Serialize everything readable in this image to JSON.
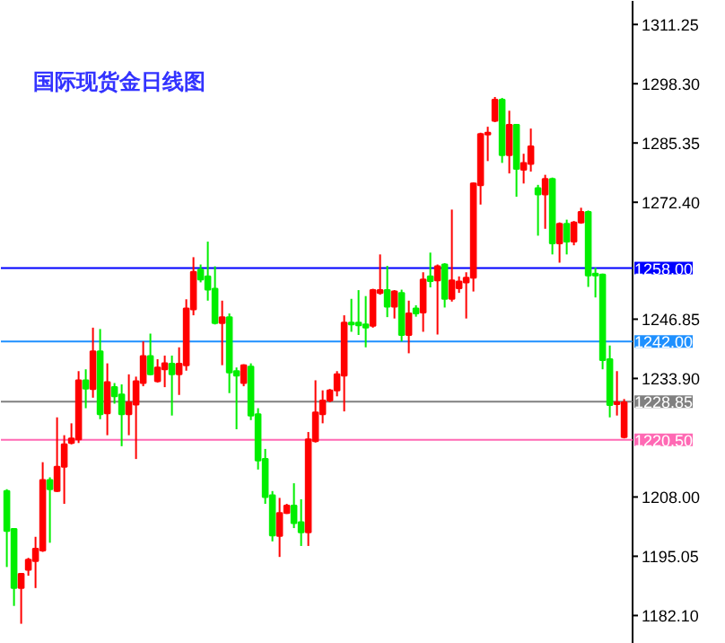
{
  "chart_data": {
    "type": "candlestick",
    "title": "国际现货金日线图",
    "categories": [
      null,
      null,
      null,
      null,
      null,
      null,
      null,
      null,
      null,
      null,
      null,
      null,
      null,
      null,
      null,
      null,
      null,
      null,
      null,
      null,
      null,
      null,
      null,
      null,
      null,
      null,
      null,
      null,
      null,
      null,
      null,
      null,
      null,
      null,
      null,
      null,
      null,
      null,
      null,
      null,
      null,
      null,
      null,
      null,
      null,
      null,
      null,
      null,
      null,
      null,
      null,
      null,
      null,
      null,
      null,
      null,
      null,
      null,
      null,
      null,
      null,
      null,
      null,
      null,
      null,
      null,
      null,
      null,
      null,
      null,
      null,
      null,
      null,
      null,
      null,
      null,
      null,
      null,
      null,
      null,
      null,
      null,
      null,
      null,
      null,
      null,
      null
    ],
    "ohlc": [
      [
        1209.3,
        1209.7,
        1192.7,
        1200.6
      ],
      [
        1201.0,
        1201.2,
        1184.2,
        1188.1
      ],
      [
        1188.1,
        1191.4,
        1180.3,
        1191.2
      ],
      [
        1192.1,
        1194.7,
        1190.8,
        1194.3
      ],
      [
        1194.0,
        1199.3,
        1188.1,
        1196.7
      ],
      [
        1196.3,
        1215.6,
        1196.0,
        1211.7
      ],
      [
        1211.7,
        1212.3,
        1198.0,
        1209.7
      ],
      [
        1209.3,
        1225.4,
        1209.1,
        1214.6
      ],
      [
        1214.6,
        1221.5,
        1206.5,
        1219.5
      ],
      [
        1219.8,
        1224.1,
        1219.5,
        1220.8
      ],
      [
        1220.6,
        1235.5,
        1219.8,
        1233.5
      ],
      [
        1233.5,
        1235.9,
        1227.4,
        1231.7
      ],
      [
        1231.6,
        1245.0,
        1229.7,
        1239.8
      ],
      [
        1239.8,
        1244.7,
        1225.0,
        1226.1
      ],
      [
        1226.3,
        1237.2,
        1221.5,
        1233.1
      ],
      [
        1232.0,
        1232.9,
        1228.4,
        1230.0
      ],
      [
        1230.4,
        1232.6,
        1219.1,
        1226.1
      ],
      [
        1226.1,
        1234.8,
        1221.5,
        1228.7
      ],
      [
        1228.2,
        1234.3,
        1216.3,
        1233.3
      ],
      [
        1232.9,
        1242.0,
        1232.2,
        1238.8
      ],
      [
        1238.8,
        1243.7,
        1234.6,
        1234.8
      ],
      [
        1233.3,
        1238.1,
        1233.0,
        1236.3
      ],
      [
        1235.9,
        1238.9,
        1232.0,
        1237.2
      ],
      [
        1237.1,
        1238.9,
        1225.8,
        1234.8
      ],
      [
        1234.8,
        1240.7,
        1230.3,
        1237.1
      ],
      [
        1236.8,
        1251.2,
        1235.6,
        1249.2
      ],
      [
        1249.0,
        1260.4,
        1247.7,
        1257.2
      ],
      [
        1257.7,
        1258.8,
        1254.9,
        1255.5
      ],
      [
        1256.2,
        1263.8,
        1250.9,
        1253.3
      ],
      [
        1253.5,
        1258.4,
        1245.7,
        1246.0
      ],
      [
        1246.0,
        1250.9,
        1236.8,
        1247.3
      ],
      [
        1247.3,
        1248.1,
        1230.7,
        1235.2
      ],
      [
        1235.5,
        1236.3,
        1222.8,
        1234.5
      ],
      [
        1232.9,
        1237.0,
        1232.2,
        1236.8
      ],
      [
        1236.5,
        1237.2,
        1224.8,
        1225.8
      ],
      [
        1226.1,
        1227.4,
        1214.0,
        1216.0
      ],
      [
        1216.3,
        1218.5,
        1206.5,
        1208.0
      ],
      [
        1208.4,
        1209.3,
        1198.3,
        1199.6
      ],
      [
        1199.5,
        1207.8,
        1194.9,
        1204.5
      ],
      [
        1204.5,
        1206.5,
        1204.3,
        1206.1
      ],
      [
        1206.1,
        1211.0,
        1201.2,
        1202.3
      ],
      [
        1202.5,
        1207.5,
        1197.3,
        1200.3
      ],
      [
        1200.3,
        1222.2,
        1197.3,
        1220.6
      ],
      [
        1220.2,
        1233.5,
        1219.9,
        1226.5
      ],
      [
        1226.1,
        1231.3,
        1224.1,
        1229.1
      ],
      [
        1229.1,
        1231.6,
        1228.7,
        1231.3
      ],
      [
        1231.3,
        1235.5,
        1230.0,
        1234.8
      ],
      [
        1234.5,
        1247.7,
        1226.7,
        1246.1
      ],
      [
        1246.1,
        1251.3,
        1244.1,
        1245.7
      ],
      [
        1246.1,
        1253.2,
        1243.4,
        1245.5
      ],
      [
        1245.7,
        1251.9,
        1240.7,
        1245.0
      ],
      [
        1245.4,
        1253.5,
        1245.0,
        1253.2
      ],
      [
        1252.6,
        1261.0,
        1252.2,
        1253.2
      ],
      [
        1253.2,
        1258.5,
        1247.3,
        1249.6
      ],
      [
        1249.6,
        1253.2,
        1247.0,
        1252.9
      ],
      [
        1252.6,
        1253.3,
        1242.0,
        1243.4
      ],
      [
        1243.4,
        1250.9,
        1239.4,
        1248.1
      ],
      [
        1249.2,
        1249.9,
        1247.4,
        1248.1
      ],
      [
        1248.3,
        1257.1,
        1244.1,
        1255.5
      ],
      [
        1256.2,
        1261.4,
        1253.8,
        1255.2
      ],
      [
        1255.3,
        1258.8,
        1243.5,
        1258.4
      ],
      [
        1258.8,
        1259.1,
        1249.4,
        1251.3
      ],
      [
        1251.3,
        1270.8,
        1250.7,
        1255.3
      ],
      [
        1253.6,
        1256.2,
        1252.6,
        1255.1
      ],
      [
        1254.9,
        1257.1,
        1247.0,
        1255.9
      ],
      [
        1255.9,
        1276.7,
        1252.9,
        1276.5
      ],
      [
        1276.1,
        1287.6,
        1271.9,
        1287.3
      ],
      [
        1287.2,
        1288.9,
        1281.4,
        1287.6
      ],
      [
        1290.2,
        1295.4,
        1289.9,
        1294.8
      ],
      [
        1294.8,
        1295.2,
        1281.0,
        1282.7
      ],
      [
        1282.7,
        1292.4,
        1278.7,
        1289.3
      ],
      [
        1289.3,
        1289.5,
        1273.6,
        1279.7
      ],
      [
        1279.5,
        1283.0,
        1276.5,
        1281.0
      ],
      [
        1280.8,
        1288.5,
        1279.1,
        1284.6
      ],
      [
        1275.5,
        1276.2,
        1265.1,
        1274.1
      ],
      [
        1274.1,
        1278.4,
        1266.6,
        1277.5
      ],
      [
        1277.5,
        1277.8,
        1261.0,
        1263.4
      ],
      [
        1263.4,
        1268.0,
        1259.2,
        1267.7
      ],
      [
        1267.7,
        1268.6,
        1261.0,
        1263.8
      ],
      [
        1263.8,
        1268.3,
        1263.0,
        1268.0
      ],
      [
        1268.0,
        1271.2,
        1267.7,
        1270.3
      ],
      [
        1270.3,
        1270.6,
        1253.9,
        1256.4
      ],
      [
        1256.8,
        1258.1,
        1251.6,
        1256.4
      ],
      [
        1256.6,
        1256.8,
        1235.9,
        1237.9
      ],
      [
        1238.1,
        1241.1,
        1225.4,
        1228.1
      ],
      [
        1228.3,
        1235.5,
        1225.8,
        1228.7
      ],
      [
        1221.1,
        1229.4,
        1220.8,
        1228.7
      ]
    ],
    "colors": [
      "#00ee00",
      "#00ee00",
      "#ff0000",
      "#ff0000",
      "#ff0000",
      "#ff0000",
      "#00ee00",
      "#ff0000",
      "#ff0000",
      "#ff0000",
      "#ff0000",
      "#00ee00",
      "#ff0000",
      "#00ee00",
      "#ff0000",
      "#00ee00",
      "#00ee00",
      "#ff0000",
      "#ff0000",
      "#ff0000",
      "#00ee00",
      "#ff0000",
      "#ff0000",
      "#00ee00",
      "#ff0000",
      "#ff0000",
      "#ff0000",
      "#00ee00",
      "#00ee00",
      "#00ee00",
      "#ff0000",
      "#00ee00",
      "#00ee00",
      "#ff0000",
      "#00ee00",
      "#00ee00",
      "#00ee00",
      "#00ee00",
      "#ff0000",
      "#ff0000",
      "#00ee00",
      "#00ee00",
      "#ff0000",
      "#ff0000",
      "#ff0000",
      "#ff0000",
      "#ff0000",
      "#ff0000",
      "#00ee00",
      "#00ee00",
      "#00ee00",
      "#ff0000",
      "#ff0000",
      "#00ee00",
      "#ff0000",
      "#00ee00",
      "#ff0000",
      "#00ee00",
      "#ff0000",
      "#00ee00",
      "#ff0000",
      "#00ee00",
      "#ff0000",
      "#ff0000",
      "#ff0000",
      "#ff0000",
      "#ff0000",
      "#ff0000",
      "#ff0000",
      "#00ee00",
      "#ff0000",
      "#00ee00",
      "#ff0000",
      "#ff0000",
      "#00ee00",
      "#ff0000",
      "#00ee00",
      "#ff0000",
      "#00ee00",
      "#ff0000",
      "#ff0000",
      "#00ee00",
      "#00ee00",
      "#00ee00",
      "#00ee00",
      "#ff0000",
      "#ff0000"
    ],
    "ylim": [
      1175.9,
      1316.4
    ],
    "yticks": [
      {
        "value": 1311.25,
        "label": "1311.25"
      },
      {
        "value": 1298.3,
        "label": "1298.30"
      },
      {
        "value": 1285.35,
        "label": "1285.35"
      },
      {
        "value": 1272.4,
        "label": "1272.40"
      },
      {
        "value": 1246.85,
        "label": "1246.85"
      },
      {
        "value": 1233.9,
        "label": "1233.90"
      },
      {
        "value": 1208.0,
        "label": "1208.00"
      },
      {
        "value": 1195.05,
        "label": "1195.05"
      },
      {
        "value": 1182.1,
        "label": "1182.10"
      }
    ],
    "ref_lines": [
      {
        "axis": "y",
        "value": 1258.0,
        "label": "1258.00",
        "color": "#0000ff"
      },
      {
        "axis": "y",
        "value": 1242.0,
        "label": "1242.00",
        "color": "#1e90ff"
      },
      {
        "axis": "y",
        "value": 1228.85,
        "label": "1228.85",
        "color": "#808080"
      },
      {
        "axis": "y",
        "value": 1220.5,
        "label": "1220.50",
        "color": "#ff69b4"
      }
    ],
    "grid": false,
    "tick_labels": "y"
  }
}
